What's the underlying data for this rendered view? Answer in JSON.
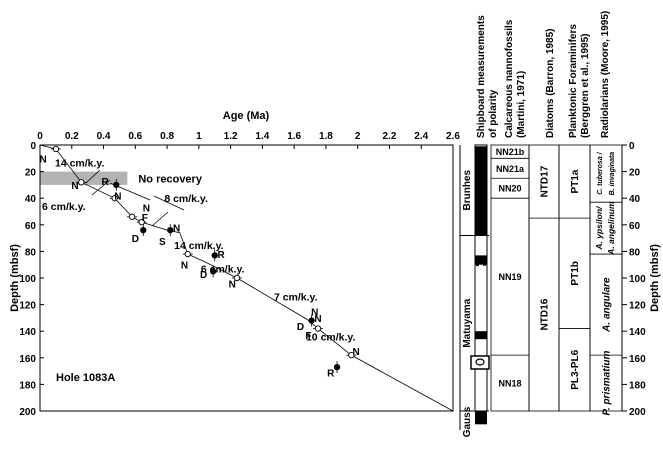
{
  "chart_data": {
    "type": "scatter",
    "title": "",
    "xlabel": "Age (Ma)",
    "ylabel": "Depth (mbsf)",
    "ylabel_right": "Depth (mbsf)",
    "xlim": [
      0,
      2.6
    ],
    "ylim": [
      0,
      200
    ],
    "y_inverted": true,
    "x_axis_position": "top",
    "xticks": [
      0,
      0.2,
      0.4,
      0.6,
      0.8,
      1,
      1.2,
      1.4,
      1.6,
      1.8,
      2,
      2.2,
      2.4,
      2.6
    ],
    "xtick_labels": [
      "0",
      "0.2",
      "0.4",
      "0.6",
      "0.8",
      "1",
      "1.2",
      "1.4",
      "1.6",
      "1.8",
      "2",
      "2.2",
      "2.4",
      "2.6"
    ],
    "yticks": [
      0,
      20,
      40,
      60,
      80,
      100,
      120,
      140,
      160,
      180,
      200
    ],
    "ytick_labels": [
      "0",
      "20",
      "40",
      "60",
      "80",
      "100",
      "120",
      "140",
      "160",
      "180",
      "200"
    ],
    "grid": false,
    "hole_label": "Hole 1083A",
    "no_recovery": {
      "label": "No recovery",
      "x_range": [
        0,
        0.55
      ],
      "depth_range": [
        20,
        30
      ]
    },
    "age_depth_line": [
      [
        0,
        0
      ],
      [
        0.1,
        3
      ],
      [
        0.26,
        28
      ],
      [
        0.47,
        40
      ],
      [
        0.58,
        54
      ],
      [
        0.64,
        58
      ],
      [
        0.8,
        64
      ],
      [
        0.88,
        66
      ],
      [
        0.93,
        82
      ],
      [
        1.04,
        88
      ],
      [
        1.24,
        100
      ],
      [
        1.68,
        131
      ],
      [
        1.75,
        138
      ],
      [
        1.96,
        158
      ],
      [
        2.6,
        200
      ]
    ],
    "series": [
      {
        "name": "",
        "marker": "open-circle",
        "points": [
          [
            0.1,
            3
          ],
          [
            0.26,
            28
          ],
          [
            0.47,
            40
          ],
          [
            0.58,
            54
          ],
          [
            0.64,
            58
          ],
          [
            0.93,
            82
          ],
          [
            1.24,
            100
          ],
          [
            1.75,
            138
          ],
          [
            1.96,
            158
          ]
        ]
      },
      {
        "name": "",
        "marker": "filled-circle",
        "points": [
          [
            0.48,
            30
          ],
          [
            0.65,
            64
          ],
          [
            0.82,
            64
          ],
          [
            1.09,
            95
          ],
          [
            1.1,
            83
          ],
          [
            1.71,
            132
          ],
          [
            1.87,
            167
          ]
        ]
      }
    ],
    "point_labels": [
      {
        "text": "N",
        "x": 0.02,
        "y": 10
      },
      {
        "text": "N",
        "x": 0.22,
        "y": 30
      },
      {
        "text": "R",
        "x": 0.41,
        "y": 27
      },
      {
        "text": "N",
        "x": 0.49,
        "y": 38
      },
      {
        "text": "N",
        "x": 0.67,
        "y": 47
      },
      {
        "text": "F",
        "x": 0.66,
        "y": 54
      },
      {
        "text": "D",
        "x": 0.6,
        "y": 70
      },
      {
        "text": "S",
        "x": 0.77,
        "y": 72
      },
      {
        "text": "N",
        "x": 0.86,
        "y": 62
      },
      {
        "text": "R",
        "x": 1.14,
        "y": 82
      },
      {
        "text": "N",
        "x": 0.91,
        "y": 90
      },
      {
        "text": "D",
        "x": 1.03,
        "y": 97
      },
      {
        "text": "N",
        "x": 1.21,
        "y": 104
      },
      {
        "text": "N",
        "x": 1.73,
        "y": 125
      },
      {
        "text": "D",
        "x": 1.64,
        "y": 136
      },
      {
        "text": "N",
        "x": 1.75,
        "y": 130
      },
      {
        "text": "F",
        "x": 1.69,
        "y": 143
      },
      {
        "text": "N",
        "x": 1.99,
        "y": 155
      },
      {
        "text": "R",
        "x": 1.83,
        "y": 171
      }
    ],
    "rate_labels": [
      {
        "text": "14 cm/k.y.",
        "x": 0.25,
        "y": 13
      },
      {
        "text": "6 cm/k.y.",
        "x": 0.15,
        "y": 46
      },
      {
        "text": "8 cm/k.y.",
        "x": 0.92,
        "y": 40
      },
      {
        "text": "14 cm/k.y.",
        "x": 1.0,
        "y": 75
      },
      {
        "text": "6 cm/k.y.",
        "x": 1.15,
        "y": 93
      },
      {
        "text": "7 cm/k.y.",
        "x": 1.61,
        "y": 114
      },
      {
        "text": "10 cm/k.y.",
        "x": 1.83,
        "y": 144
      }
    ]
  },
  "columns": {
    "polarity": {
      "header": "Shipboard measurements of polarity",
      "chrons": [
        {
          "name": "Brunhes",
          "top": 0,
          "bottom": 68
        },
        {
          "name": "Matuyama",
          "top": 68,
          "bottom": 200
        },
        {
          "name": "Gauss",
          "top": 200,
          "bottom": 210
        }
      ],
      "normal_blocks": [
        [
          1,
          68
        ],
        [
          83,
          90
        ],
        [
          140,
          146
        ],
        [
          200,
          210
        ]
      ],
      "reversed_blocks": [
        [
          68,
          83
        ],
        [
          90,
          140
        ],
        [
          146,
          200
        ]
      ]
    },
    "nannofossils": {
      "header": "Calcareous nannofossils (Martini, 1971)",
      "zones": [
        {
          "name": "NN21b",
          "top": 0,
          "bottom": 10
        },
        {
          "name": "NN21a",
          "top": 10,
          "bottom": 25
        },
        {
          "name": "NN20",
          "top": 25,
          "bottom": 40
        },
        {
          "name": "NN19",
          "top": 40,
          "bottom": 158
        },
        {
          "name": "NN18",
          "top": 158,
          "bottom": 200
        }
      ]
    },
    "diatoms": {
      "header": "Diatoms (Barron, 1985)",
      "zones": [
        {
          "name": "NTD17",
          "top": 0,
          "bottom": 55
        },
        {
          "name": "NTD16",
          "top": 55,
          "bottom": 200
        }
      ]
    },
    "forams": {
      "header": "Planktonic Foraminifers (Berggren et al., 1995)",
      "zones": [
        {
          "name": "PT1a",
          "top": 0,
          "bottom": 55
        },
        {
          "name": "PT1b",
          "top": 55,
          "bottom": 138
        },
        {
          "name": "PL3-PL6",
          "top": 138,
          "bottom": 200
        }
      ]
    },
    "radiolarians": {
      "header": "Radiolarians (Moore, 1995)",
      "zones": [
        {
          "name": "C. tuberosa / B. invaginata",
          "top": 0,
          "bottom": 43
        },
        {
          "name": "A. ypsilon/ A. angelinum",
          "top": 43,
          "bottom": 82
        },
        {
          "name": "A. angulare",
          "top": 82,
          "bottom": 158
        },
        {
          "name": "P. prismatium",
          "top": 158,
          "bottom": 200
        }
      ]
    }
  }
}
